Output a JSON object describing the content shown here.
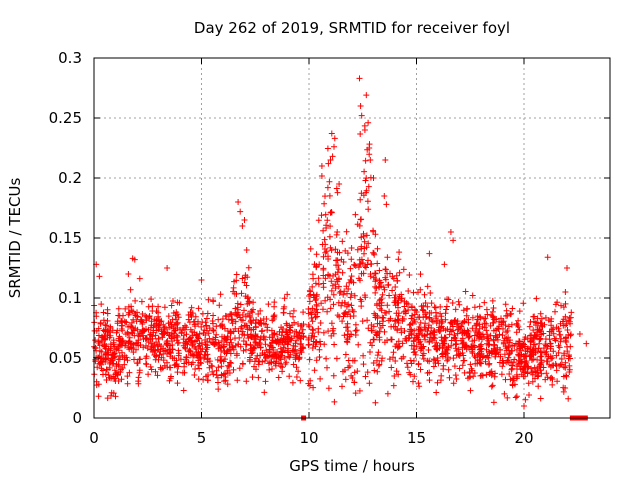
{
  "chart_data": {
    "type": "scatter",
    "title": "Day 262 of 2019, SRMTID for receiver foyl",
    "xlabel": "GPS time / hours",
    "ylabel": "SRMTID / TECUs",
    "xlim": [
      0,
      24
    ],
    "ylim": [
      0,
      0.3
    ],
    "x_ticks": [
      0,
      5,
      10,
      15,
      20
    ],
    "x_tick_labels": [
      "0",
      "5",
      "10",
      "15",
      "20"
    ],
    "y_ticks": [
      0,
      0.05,
      0.1,
      0.15,
      0.2,
      0.25,
      0.3
    ],
    "y_tick_labels": [
      "0",
      "0.05",
      "0.1",
      "0.15",
      "0.2",
      "0.25",
      "0.3"
    ],
    "grid": true,
    "marker": "plus",
    "color": "#ff0000",
    "trend_profile": [
      [
        0.0,
        0.062,
        0.018
      ],
      [
        0.5,
        0.055,
        0.018
      ],
      [
        1.0,
        0.05,
        0.016
      ],
      [
        1.5,
        0.068,
        0.018
      ],
      [
        2.0,
        0.07,
        0.017
      ],
      [
        3.0,
        0.066,
        0.016
      ],
      [
        4.0,
        0.062,
        0.015
      ],
      [
        5.0,
        0.063,
        0.015
      ],
      [
        6.0,
        0.06,
        0.015
      ],
      [
        6.5,
        0.075,
        0.022
      ],
      [
        7.0,
        0.08,
        0.025
      ],
      [
        7.5,
        0.06,
        0.014
      ],
      [
        8.0,
        0.062,
        0.014
      ],
      [
        9.0,
        0.063,
        0.014
      ],
      [
        9.8,
        0.064,
        0.014
      ],
      [
        10.3,
        0.09,
        0.03
      ],
      [
        10.8,
        0.125,
        0.045
      ],
      [
        11.3,
        0.11,
        0.04
      ],
      [
        11.8,
        0.08,
        0.025
      ],
      [
        12.3,
        0.12,
        0.05
      ],
      [
        12.7,
        0.15,
        0.055
      ],
      [
        13.2,
        0.085,
        0.03
      ],
      [
        13.7,
        0.095,
        0.03
      ],
      [
        14.2,
        0.085,
        0.025
      ],
      [
        15.0,
        0.07,
        0.018
      ],
      [
        16.0,
        0.066,
        0.017
      ],
      [
        17.0,
        0.068,
        0.017
      ],
      [
        18.0,
        0.063,
        0.016
      ],
      [
        19.0,
        0.06,
        0.016
      ],
      [
        20.0,
        0.055,
        0.016
      ],
      [
        21.0,
        0.06,
        0.018
      ],
      [
        22.0,
        0.06,
        0.02
      ]
    ],
    "x_coverage": [
      0.0,
      22.2
    ],
    "outliers": [
      [
        0.1,
        0.128
      ],
      [
        0.25,
        0.118
      ],
      [
        1.6,
        0.12
      ],
      [
        1.8,
        0.133
      ],
      [
        1.9,
        0.132
      ],
      [
        3.4,
        0.125
      ],
      [
        5.0,
        0.115
      ],
      [
        6.7,
        0.18
      ],
      [
        6.8,
        0.172
      ],
      [
        6.9,
        0.16
      ],
      [
        7.0,
        0.165
      ],
      [
        7.1,
        0.14
      ],
      [
        10.6,
        0.21
      ],
      [
        10.9,
        0.212
      ],
      [
        11.0,
        0.215
      ],
      [
        11.1,
        0.218
      ],
      [
        11.2,
        0.233
      ],
      [
        11.4,
        0.195
      ],
      [
        12.35,
        0.283
      ],
      [
        12.4,
        0.26
      ],
      [
        12.45,
        0.252
      ],
      [
        12.6,
        0.24
      ],
      [
        12.75,
        0.246
      ],
      [
        12.8,
        0.225
      ],
      [
        12.85,
        0.215
      ],
      [
        13.0,
        0.2
      ],
      [
        13.5,
        0.185
      ],
      [
        13.55,
        0.215
      ],
      [
        13.6,
        0.178
      ],
      [
        15.6,
        0.137
      ],
      [
        16.3,
        0.128
      ],
      [
        16.6,
        0.155
      ],
      [
        16.7,
        0.148
      ],
      [
        21.1,
        0.134
      ],
      [
        22.0,
        0.125
      ],
      [
        22.9,
        0.062
      ],
      [
        22.6,
        0.07
      ],
      [
        20.0,
        0.01
      ],
      [
        18.6,
        0.013
      ],
      [
        1.0,
        0.018
      ]
    ],
    "zero_markers_x": [
      9.75,
      22.25,
      22.45,
      22.65,
      22.85
    ],
    "point_count": 2400
  }
}
